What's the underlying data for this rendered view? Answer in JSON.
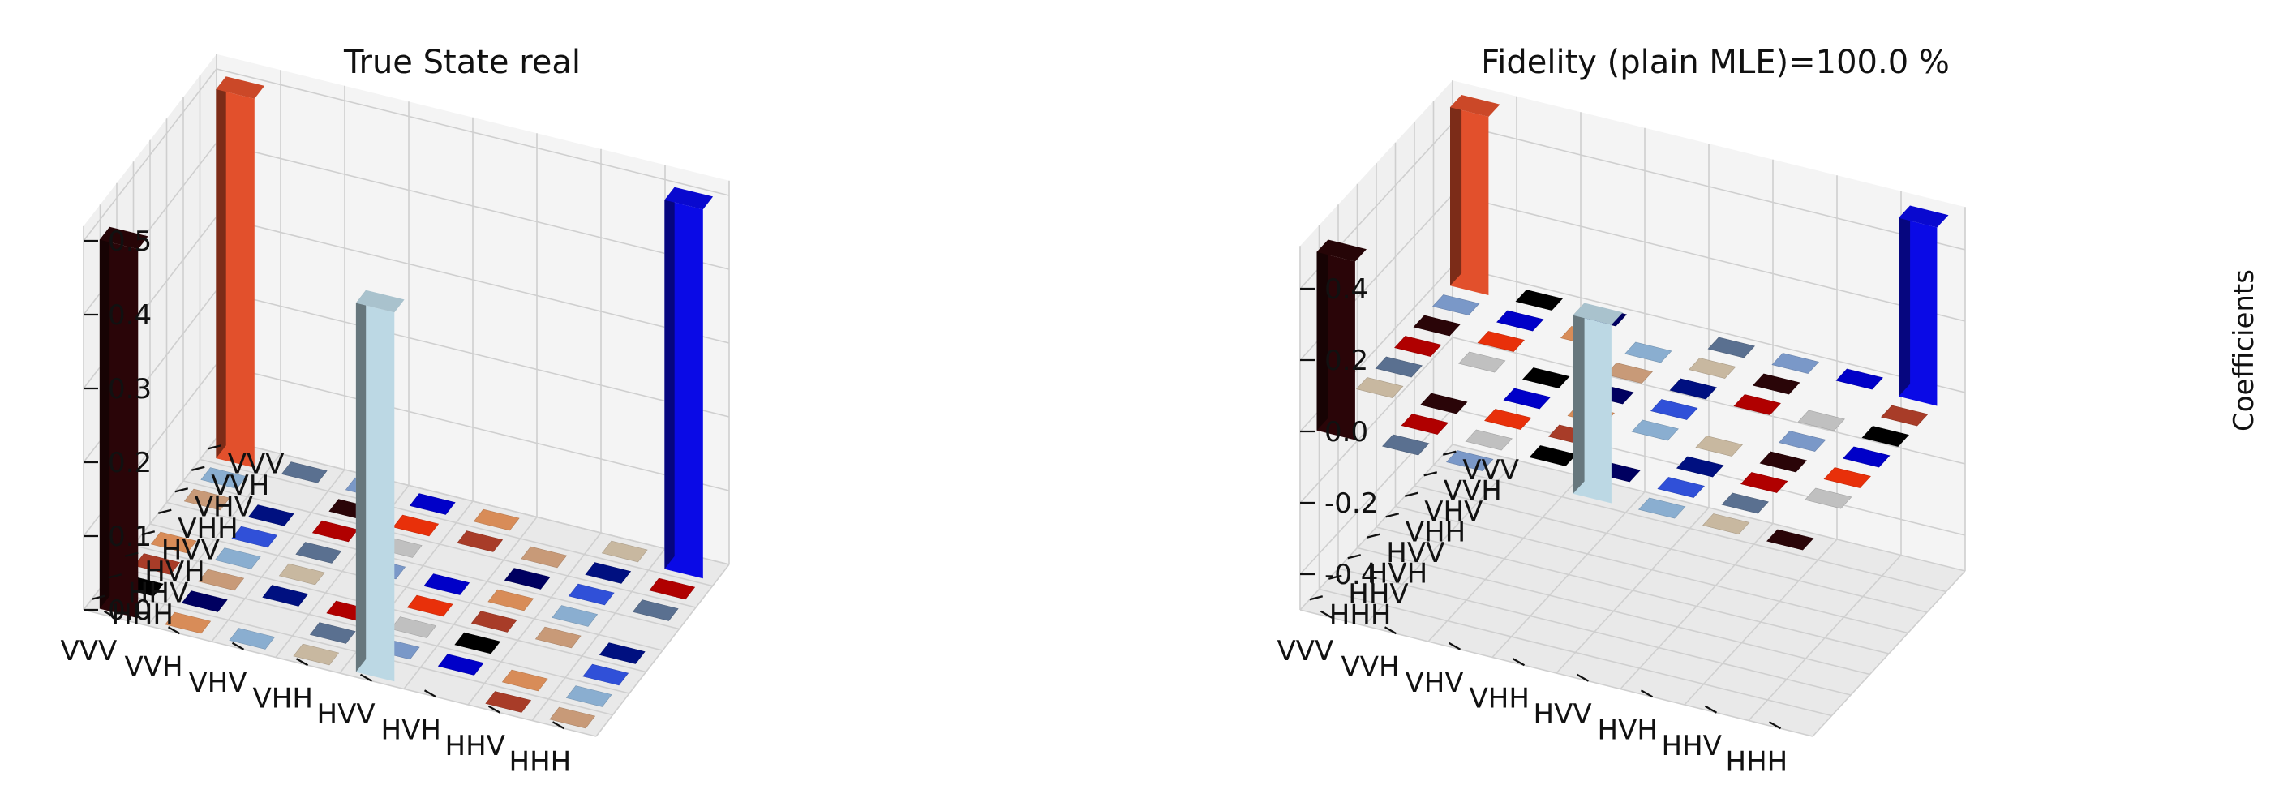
{
  "chart_data": [
    {
      "type": "bar3d",
      "title": "True State real",
      "x_tick_labels": [
        "HHH",
        "HHV",
        "HVH",
        "HVV",
        "VHH",
        "VHV",
        "VVH",
        "VVV"
      ],
      "y_tick_labels": [
        "HHH",
        "HHV",
        "HVH",
        "HVV",
        "VHH",
        "VHV",
        "VVH",
        "VVV"
      ],
      "z_tick_labels": [
        "0.0",
        "0.1",
        "0.2",
        "0.3",
        "0.4",
        "0.5"
      ],
      "zlim": [
        0,
        0.5
      ],
      "zlabel": "",
      "tall_bars": [
        {
          "row": "HHH",
          "col": "HVV",
          "value": 0.5,
          "color": "#bcd8e4"
        },
        {
          "row": "HHH",
          "col": "VVV",
          "value": 0.5,
          "color": "#2a0508"
        },
        {
          "row": "VVV",
          "col": "HHH",
          "value": 0.5,
          "color": "#0a0ae6"
        },
        {
          "row": "VVV",
          "col": "VVV",
          "value": 0.5,
          "color": "#e2502c"
        }
      ],
      "floor_tile_colors": [
        "#c89a78",
        "#0000c8",
        "#b00000",
        "#8aaed0",
        "#000000",
        "#2a0508",
        "#3050d8",
        "#a83c28",
        "#7a98c8",
        "#001080",
        "#d88c58",
        "#c0c0c0",
        "#c8b8a0",
        "#000060",
        "#e8300a",
        "#5a7090"
      ]
    },
    {
      "type": "bar3d",
      "title": "Fidelity (plain MLE)=100.0 %",
      "x_tick_labels": [
        "HHH",
        "HHV",
        "HVH",
        "HVV",
        "VHH",
        "VHV",
        "VVH",
        "VVV"
      ],
      "y_tick_labels": [
        "HHH",
        "HHV",
        "HVH",
        "HVV",
        "VHH",
        "VHV",
        "VVH",
        "VVV"
      ],
      "z_tick_labels": [
        "-0.4",
        "-0.2",
        "0.0",
        "0.2",
        "0.4"
      ],
      "zlim": [
        -0.5,
        0.5
      ],
      "zlabel": "Coefficients",
      "tall_bars": [
        {
          "row": "HHH",
          "col": "HVV",
          "value": 0.5,
          "color": "#bcd8e4"
        },
        {
          "row": "HHH",
          "col": "VVV",
          "value": 0.5,
          "color": "#2a0508"
        },
        {
          "row": "VVV",
          "col": "HHH",
          "value": 0.5,
          "color": "#0a0ae6"
        },
        {
          "row": "VVV",
          "col": "VVV",
          "value": 0.5,
          "color": "#e2502c"
        }
      ],
      "floor_tile_colors": [
        "#c89a78",
        "#0000c8",
        "#b00000",
        "#8aaed0",
        "#000000",
        "#2a0508",
        "#3050d8",
        "#a83c28",
        "#7a98c8",
        "#001080",
        "#d88c58",
        "#c0c0c0",
        "#c8b8a0",
        "#000060",
        "#e8300a",
        "#5a7090"
      ]
    }
  ]
}
